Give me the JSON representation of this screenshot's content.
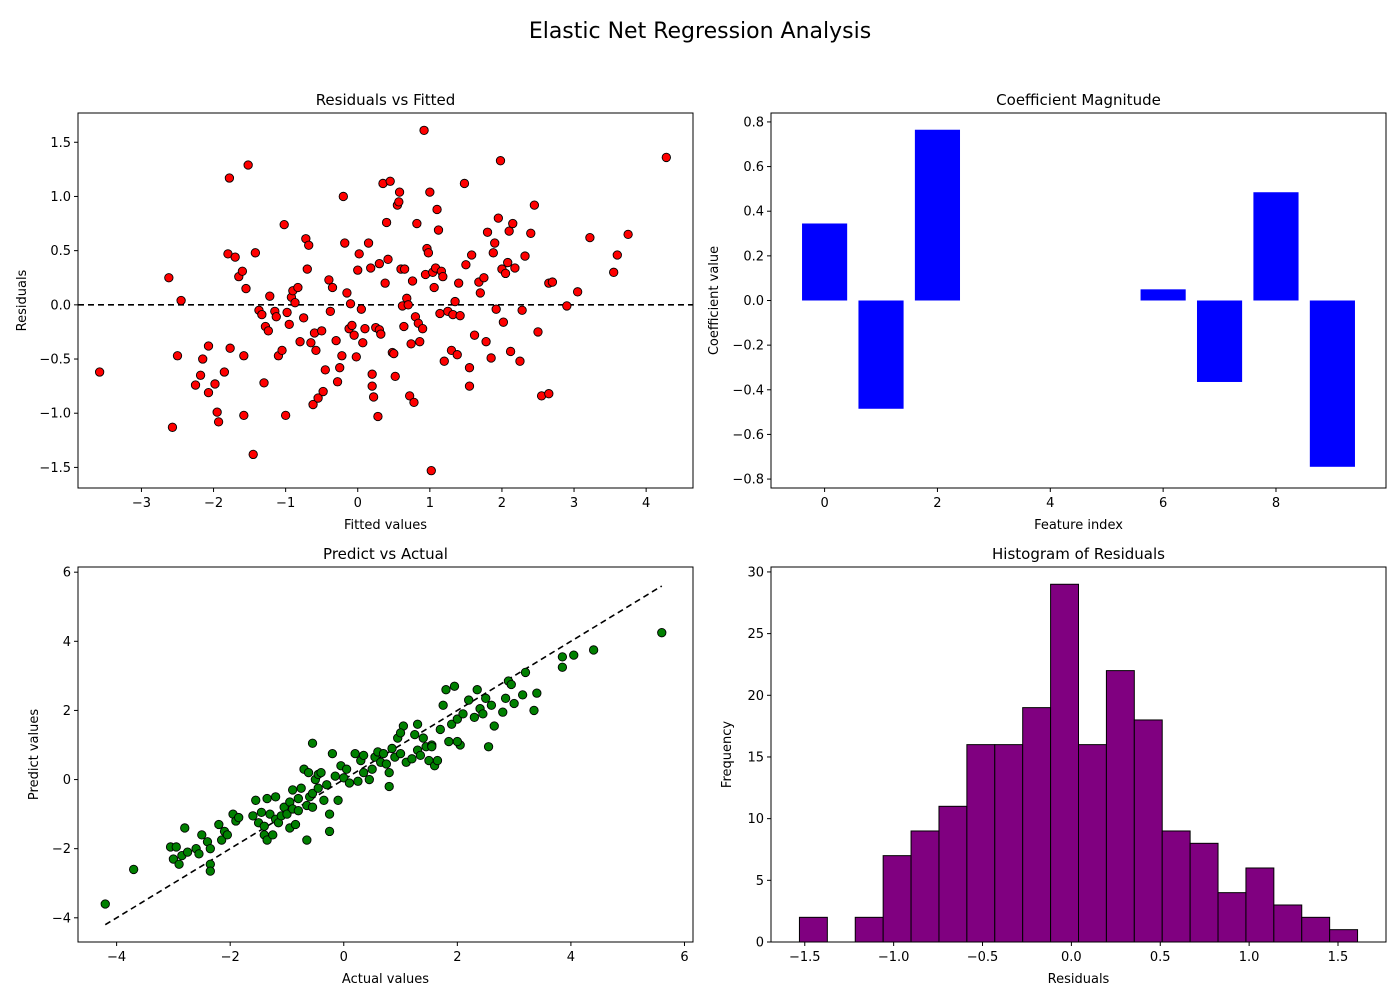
{
  "figure": {
    "title": "Elastic Net Regression Analysis"
  },
  "chart_data": [
    {
      "id": "residuals",
      "type": "scatter",
      "title": "Residuals vs Fitted",
      "xlabel": "Fitted values",
      "ylabel": "Residuals",
      "xlim": [
        -3.88,
        4.65
      ],
      "ylim": [
        -1.69,
        1.77
      ],
      "xticks": [
        -3,
        -2,
        -1,
        0,
        1,
        2,
        3,
        4
      ],
      "yticks": [
        -1.5,
        -1.0,
        -0.5,
        0.0,
        0.5,
        1.0,
        1.5
      ],
      "point_color": "#ff0000",
      "reference_line": {
        "y": 0,
        "style": "dashed",
        "color": "#000000"
      },
      "points": [
        [
          -3.58,
          -0.62
        ],
        [
          -2.62,
          0.25
        ],
        [
          -2.57,
          -1.13
        ],
        [
          -2.5,
          -0.47
        ],
        [
          -2.45,
          0.04
        ],
        [
          -2.25,
          -0.74
        ],
        [
          -2.18,
          -0.65
        ],
        [
          -2.15,
          -0.5
        ],
        [
          -2.07,
          -0.81
        ],
        [
          -2.07,
          -0.38
        ],
        [
          -1.98,
          -0.73
        ],
        [
          -1.95,
          -0.99
        ],
        [
          -1.93,
          -1.08
        ],
        [
          -1.85,
          -0.62
        ],
        [
          -1.8,
          0.47
        ],
        [
          -1.78,
          1.17
        ],
        [
          -1.77,
          -0.4
        ],
        [
          -1.7,
          0.44
        ],
        [
          -1.65,
          0.26
        ],
        [
          -1.6,
          0.31
        ],
        [
          -1.58,
          -0.47
        ],
        [
          -1.58,
          -1.02
        ],
        [
          -1.55,
          0.15
        ],
        [
          -1.52,
          1.29
        ],
        [
          -1.45,
          -1.38
        ],
        [
          -1.42,
          0.48
        ],
        [
          -1.37,
          -0.05
        ],
        [
          -1.33,
          -0.09
        ],
        [
          -1.3,
          -0.72
        ],
        [
          -1.28,
          -0.2
        ],
        [
          -1.24,
          -0.24
        ],
        [
          -1.22,
          0.08
        ],
        [
          -1.15,
          -0.06
        ],
        [
          -1.13,
          -0.11
        ],
        [
          -1.1,
          -0.47
        ],
        [
          -1.05,
          -0.42
        ],
        [
          -1.02,
          0.74
        ],
        [
          -1.0,
          -1.02
        ],
        [
          -0.98,
          -0.07
        ],
        [
          -0.95,
          -0.18
        ],
        [
          -0.92,
          0.07
        ],
        [
          -0.9,
          0.13
        ],
        [
          -0.87,
          0.02
        ],
        [
          -0.83,
          0.16
        ],
        [
          -0.8,
          -0.34
        ],
        [
          -0.75,
          -0.12
        ],
        [
          -0.72,
          0.61
        ],
        [
          -0.7,
          0.33
        ],
        [
          -0.68,
          0.55
        ],
        [
          -0.65,
          -0.35
        ],
        [
          -0.62,
          -0.92
        ],
        [
          -0.6,
          -0.26
        ],
        [
          -0.58,
          -0.42
        ],
        [
          -0.55,
          -0.86
        ],
        [
          -0.5,
          -0.24
        ],
        [
          -0.48,
          -0.8
        ],
        [
          -0.45,
          -0.6
        ],
        [
          -0.4,
          0.23
        ],
        [
          -0.38,
          -0.06
        ],
        [
          -0.35,
          0.16
        ],
        [
          -0.3,
          -0.33
        ],
        [
          -0.28,
          -0.71
        ],
        [
          -0.25,
          -0.58
        ],
        [
          -0.22,
          -0.47
        ],
        [
          -0.2,
          1.0
        ],
        [
          -0.18,
          0.57
        ],
        [
          -0.15,
          0.11
        ],
        [
          -0.12,
          -0.22
        ],
        [
          -0.1,
          0.01
        ],
        [
          -0.08,
          -0.19
        ],
        [
          -0.05,
          -0.28
        ],
        [
          -0.02,
          -0.48
        ],
        [
          0.0,
          0.32
        ],
        [
          0.02,
          0.47
        ],
        [
          0.05,
          -0.04
        ],
        [
          0.07,
          -0.35
        ],
        [
          0.1,
          -0.22
        ],
        [
          0.15,
          0.57
        ],
        [
          0.18,
          0.34
        ],
        [
          0.2,
          -0.64
        ],
        [
          0.2,
          -0.75
        ],
        [
          0.22,
          -0.85
        ],
        [
          0.25,
          -0.21
        ],
        [
          0.28,
          -1.03
        ],
        [
          0.3,
          0.38
        ],
        [
          0.3,
          -0.23
        ],
        [
          0.32,
          -0.27
        ],
        [
          0.35,
          1.12
        ],
        [
          0.38,
          0.2
        ],
        [
          0.4,
          0.76
        ],
        [
          0.42,
          0.42
        ],
        [
          0.45,
          1.14
        ],
        [
          0.48,
          -0.44
        ],
        [
          0.5,
          -0.45
        ],
        [
          0.52,
          -0.66
        ],
        [
          0.55,
          0.92
        ],
        [
          0.57,
          0.95
        ],
        [
          0.58,
          1.04
        ],
        [
          0.6,
          0.33
        ],
        [
          0.62,
          -0.01
        ],
        [
          0.64,
          -0.2
        ],
        [
          0.65,
          0.33
        ],
        [
          0.68,
          0.06
        ],
        [
          0.7,
          0.0
        ],
        [
          0.72,
          -0.84
        ],
        [
          0.74,
          -0.36
        ],
        [
          0.76,
          0.22
        ],
        [
          0.78,
          -0.9
        ],
        [
          0.8,
          -0.11
        ],
        [
          0.82,
          0.75
        ],
        [
          0.84,
          -0.17
        ],
        [
          0.86,
          -0.34
        ],
        [
          0.9,
          -0.22
        ],
        [
          0.92,
          1.61
        ],
        [
          0.94,
          0.28
        ],
        [
          0.96,
          0.52
        ],
        [
          0.98,
          0.48
        ],
        [
          1.0,
          1.04
        ],
        [
          1.02,
          -1.53
        ],
        [
          1.04,
          0.3
        ],
        [
          1.06,
          0.16
        ],
        [
          1.08,
          0.34
        ],
        [
          1.1,
          0.88
        ],
        [
          1.12,
          0.69
        ],
        [
          1.14,
          -0.08
        ],
        [
          1.16,
          0.31
        ],
        [
          1.18,
          0.26
        ],
        [
          1.2,
          -0.52
        ],
        [
          1.25,
          -0.06
        ],
        [
          1.3,
          -0.42
        ],
        [
          1.32,
          -0.09
        ],
        [
          1.35,
          0.03
        ],
        [
          1.38,
          -0.46
        ],
        [
          1.4,
          0.2
        ],
        [
          1.42,
          -0.1
        ],
        [
          1.48,
          1.12
        ],
        [
          1.5,
          0.37
        ],
        [
          1.55,
          -0.75
        ],
        [
          1.55,
          -0.58
        ],
        [
          1.58,
          0.46
        ],
        [
          1.62,
          -0.28
        ],
        [
          1.68,
          0.21
        ],
        [
          1.7,
          0.11
        ],
        [
          1.75,
          0.25
        ],
        [
          1.78,
          -0.34
        ],
        [
          1.8,
          0.67
        ],
        [
          1.85,
          -0.49
        ],
        [
          1.88,
          0.48
        ],
        [
          1.9,
          0.57
        ],
        [
          1.92,
          -0.04
        ],
        [
          1.95,
          0.8
        ],
        [
          1.98,
          1.33
        ],
        [
          2.0,
          0.33
        ],
        [
          2.02,
          -0.16
        ],
        [
          2.05,
          0.29
        ],
        [
          2.08,
          0.39
        ],
        [
          2.1,
          0.68
        ],
        [
          2.12,
          -0.43
        ],
        [
          2.15,
          0.75
        ],
        [
          2.18,
          0.34
        ],
        [
          2.25,
          -0.52
        ],
        [
          2.28,
          -0.05
        ],
        [
          2.32,
          0.45
        ],
        [
          2.4,
          0.66
        ],
        [
          2.45,
          0.92
        ],
        [
          2.5,
          -0.25
        ],
        [
          2.55,
          -0.84
        ],
        [
          2.65,
          -0.82
        ],
        [
          2.65,
          0.2
        ],
        [
          2.7,
          0.21
        ],
        [
          2.9,
          -0.01
        ],
        [
          3.05,
          0.12
        ],
        [
          3.22,
          0.62
        ],
        [
          3.55,
          0.3
        ],
        [
          3.6,
          0.46
        ],
        [
          3.75,
          0.65
        ],
        [
          4.28,
          1.36
        ]
      ]
    },
    {
      "id": "coefficients",
      "type": "bar",
      "title": "Coefficient Magnitude",
      "xlabel": "Feature index",
      "ylabel": "Coefficient value",
      "xlim": [
        -0.95,
        9.95
      ],
      "ylim": [
        -0.84,
        0.84
      ],
      "xticks": [
        0,
        2,
        4,
        6,
        8
      ],
      "yticks": [
        -0.8,
        -0.6,
        -0.4,
        -0.2,
        0.0,
        0.2,
        0.4,
        0.6,
        0.8
      ],
      "bar_color": "#0000ff",
      "categories": [
        0,
        1,
        2,
        3,
        4,
        5,
        6,
        7,
        8,
        9
      ],
      "values": [
        0.345,
        -0.485,
        0.765,
        0.0,
        0.0,
        0.0,
        0.05,
        -0.365,
        0.485,
        -0.745
      ]
    },
    {
      "id": "predict_actual",
      "type": "scatter",
      "title": "Predict vs Actual",
      "xlabel": "Actual values",
      "ylabel": "Predict values",
      "xlim": [
        -4.68,
        6.15
      ],
      "ylim": [
        -4.7,
        6.15
      ],
      "xticks": [
        -4,
        -2,
        0,
        2,
        4,
        6
      ],
      "yticks": [
        -4,
        -2,
        0,
        2,
        4,
        6
      ],
      "point_color": "#008000",
      "reference_line": {
        "from": [
          -4.2,
          -4.2
        ],
        "to": [
          5.6,
          5.6
        ],
        "style": "dashed",
        "color": "#000000"
      },
      "points": [
        [
          -4.2,
          -3.6
        ],
        [
          -3.7,
          -2.6
        ],
        [
          -3.05,
          -1.95
        ],
        [
          -3.0,
          -2.3
        ],
        [
          -2.95,
          -1.95
        ],
        [
          -2.9,
          -2.45
        ],
        [
          -2.85,
          -2.2
        ],
        [
          -2.8,
          -1.4
        ],
        [
          -2.75,
          -2.1
        ],
        [
          -2.6,
          -2.0
        ],
        [
          -2.55,
          -2.15
        ],
        [
          -2.5,
          -1.6
        ],
        [
          -2.4,
          -1.8
        ],
        [
          -2.35,
          -2.0
        ],
        [
          -2.35,
          -2.45
        ],
        [
          -2.35,
          -2.65
        ],
        [
          -2.2,
          -1.3
        ],
        [
          -2.15,
          -1.75
        ],
        [
          -2.1,
          -1.5
        ],
        [
          -2.05,
          -1.6
        ],
        [
          -1.95,
          -1.0
        ],
        [
          -1.9,
          -1.2
        ],
        [
          -1.85,
          -1.1
        ],
        [
          -1.6,
          -1.05
        ],
        [
          -1.55,
          -0.6
        ],
        [
          -1.5,
          -1.25
        ],
        [
          -1.45,
          -0.95
        ],
        [
          -1.4,
          -1.35
        ],
        [
          -1.4,
          -1.6
        ],
        [
          -1.35,
          -1.75
        ],
        [
          -1.35,
          -0.55
        ],
        [
          -1.3,
          -1.0
        ],
        [
          -1.25,
          -1.6
        ],
        [
          -1.2,
          -0.5
        ],
        [
          -1.2,
          -1.15
        ],
        [
          -1.15,
          -1.25
        ],
        [
          -1.1,
          -1.05
        ],
        [
          -1.05,
          -0.8
        ],
        [
          -1.0,
          -1.0
        ],
        [
          -0.95,
          -0.65
        ],
        [
          -0.95,
          -1.4
        ],
        [
          -0.9,
          -0.3
        ],
        [
          -0.9,
          -0.85
        ],
        [
          -0.85,
          -1.3
        ],
        [
          -0.8,
          -0.55
        ],
        [
          -0.8,
          -0.9
        ],
        [
          -0.75,
          -0.25
        ],
        [
          -0.7,
          0.3
        ],
        [
          -0.65,
          -0.75
        ],
        [
          -0.62,
          0.2
        ],
        [
          -0.6,
          -0.5
        ],
        [
          -0.55,
          -0.4
        ],
        [
          -0.55,
          -0.8
        ],
        [
          -0.5,
          0.0
        ],
        [
          -0.45,
          0.15
        ],
        [
          -0.45,
          -0.25
        ],
        [
          -0.4,
          0.2
        ],
        [
          -0.35,
          -0.6
        ],
        [
          -0.3,
          -0.15
        ],
        [
          -0.25,
          -1.0
        ],
        [
          -0.25,
          -1.5
        ],
        [
          -0.2,
          0.75
        ],
        [
          -0.15,
          0.1
        ],
        [
          -0.1,
          -0.6
        ],
        [
          -0.05,
          0.4
        ],
        [
          0.0,
          0.05
        ],
        [
          0.05,
          0.3
        ],
        [
          0.1,
          -0.1
        ],
        [
          0.2,
          0.75
        ],
        [
          0.25,
          -0.05
        ],
        [
          0.3,
          0.55
        ],
        [
          0.35,
          0.2
        ],
        [
          0.45,
          0.0
        ],
        [
          0.5,
          0.3
        ],
        [
          0.55,
          0.65
        ],
        [
          0.6,
          0.8
        ],
        [
          0.65,
          0.5
        ],
        [
          0.7,
          0.75
        ],
        [
          0.75,
          0.45
        ],
        [
          0.8,
          0.2
        ],
        [
          0.85,
          0.9
        ],
        [
          0.9,
          0.65
        ],
        [
          0.95,
          1.2
        ],
        [
          1.0,
          0.75
        ],
        [
          1.05,
          1.55
        ],
        [
          1.1,
          0.5
        ],
        [
          1.2,
          0.6
        ],
        [
          1.25,
          1.3
        ],
        [
          1.3,
          0.85
        ],
        [
          1.35,
          0.7
        ],
        [
          1.4,
          1.2
        ],
        [
          1.45,
          0.95
        ],
        [
          1.5,
          0.55
        ],
        [
          1.55,
          1.0
        ],
        [
          1.6,
          0.4
        ],
        [
          1.65,
          0.55
        ],
        [
          1.7,
          1.45
        ],
        [
          1.75,
          2.15
        ],
        [
          1.8,
          2.6
        ],
        [
          1.85,
          1.1
        ],
        [
          1.9,
          1.6
        ],
        [
          1.95,
          2.7
        ],
        [
          2.0,
          1.75
        ],
        [
          2.05,
          1.0
        ],
        [
          2.1,
          1.9
        ],
        [
          2.2,
          2.3
        ],
        [
          2.3,
          1.8
        ],
        [
          2.35,
          2.6
        ],
        [
          2.4,
          2.05
        ],
        [
          2.45,
          1.9
        ],
        [
          2.5,
          2.35
        ],
        [
          2.55,
          0.95
        ],
        [
          2.6,
          2.15
        ],
        [
          2.65,
          1.55
        ],
        [
          2.8,
          1.95
        ],
        [
          2.85,
          2.35
        ],
        [
          2.9,
          2.85
        ],
        [
          2.95,
          2.75
        ],
        [
          3.0,
          2.2
        ],
        [
          3.15,
          2.45
        ],
        [
          3.2,
          3.1
        ],
        [
          3.35,
          2.0
        ],
        [
          3.4,
          2.5
        ],
        [
          3.85,
          3.25
        ],
        [
          3.85,
          3.55
        ],
        [
          4.05,
          3.6
        ],
        [
          4.4,
          3.75
        ],
        [
          5.6,
          4.25
        ],
        [
          -0.65,
          -1.75
        ],
        [
          -0.55,
          1.05
        ],
        [
          0.35,
          0.7
        ],
        [
          0.8,
          -0.2
        ],
        [
          1.0,
          1.35
        ],
        [
          1.3,
          1.6
        ],
        [
          1.55,
          0.95
        ],
        [
          2.0,
          1.1
        ]
      ]
    },
    {
      "id": "histogram",
      "type": "bar",
      "title": "Histogram of Residuals",
      "xlabel": "Residuals",
      "ylabel": "Frequency",
      "xlim": [
        -1.69,
        1.77
      ],
      "ylim": [
        0,
        30.4
      ],
      "xticks": [
        -1.5,
        -1.0,
        -0.5,
        0.0,
        0.5,
        1.0,
        1.5
      ],
      "yticks": [
        0,
        5,
        10,
        15,
        20,
        25,
        30
      ],
      "bar_color": "#800080",
      "bin_start": -1.53,
      "bin_width": 0.157,
      "counts": [
        2,
        0,
        2,
        7,
        9,
        11,
        16,
        16,
        19,
        29,
        16,
        22,
        18,
        9,
        8,
        4,
        6,
        3,
        2,
        1
      ]
    }
  ]
}
